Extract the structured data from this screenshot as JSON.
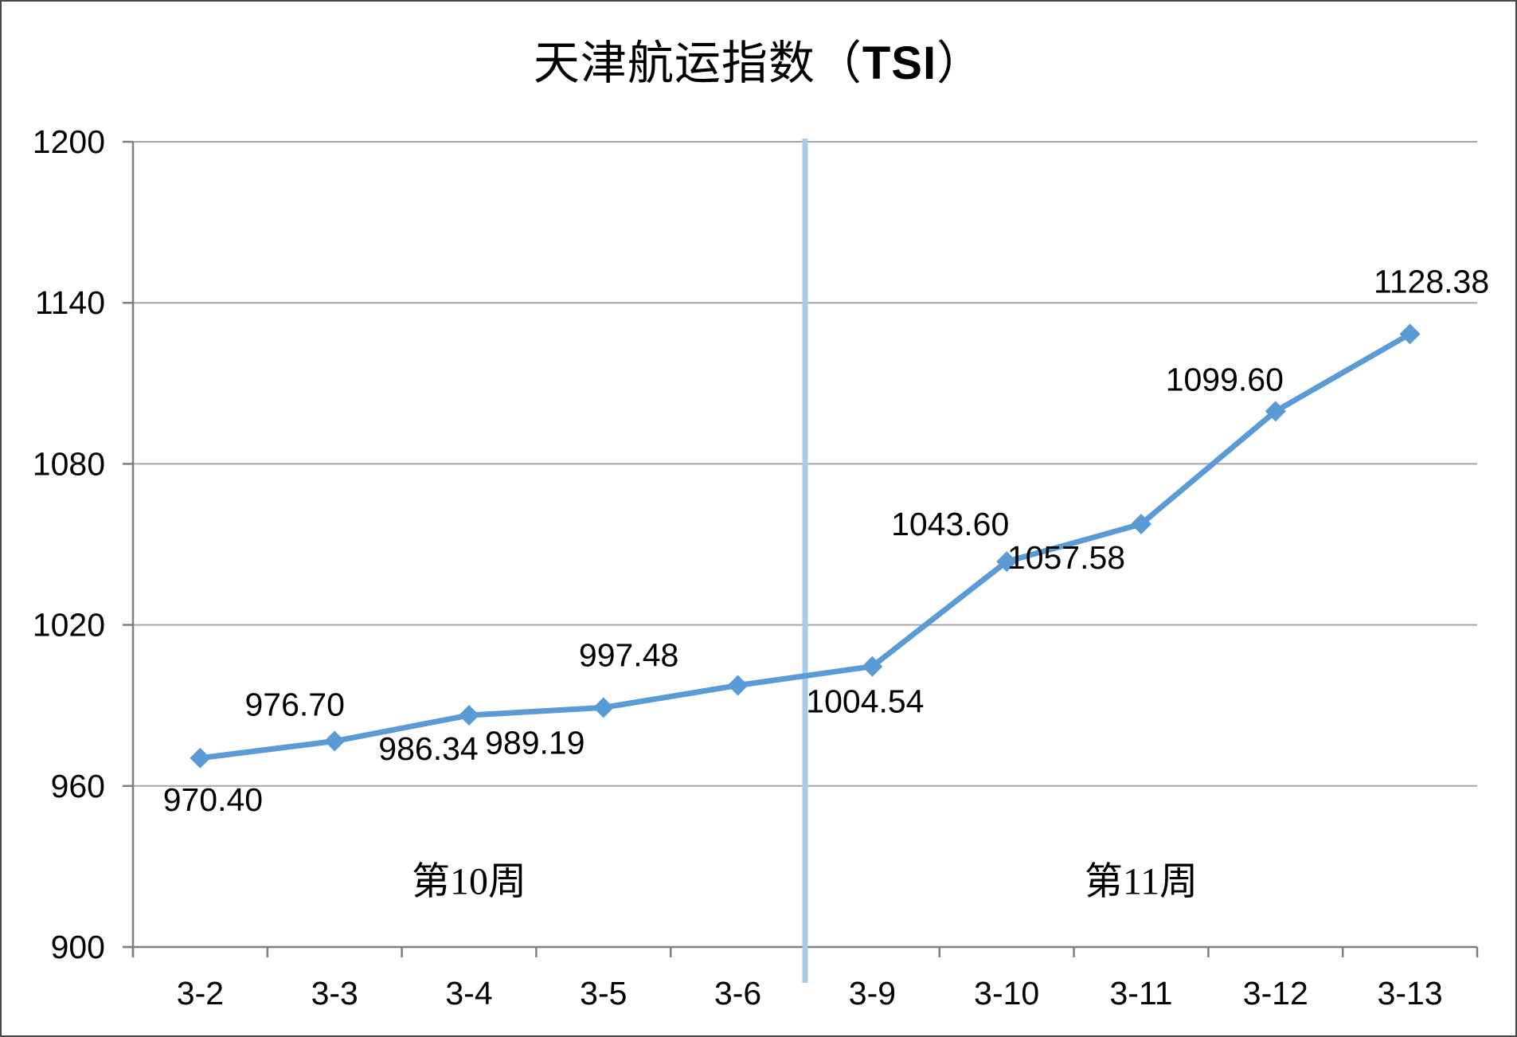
{
  "title": {
    "prefix": "天津航运指数（",
    "highlight": "TSI",
    "suffix": "）"
  },
  "chart_data": {
    "type": "line",
    "title": "天津航运指数（TSI）",
    "categories": [
      "3-2",
      "3-3",
      "3-4",
      "3-5",
      "3-6",
      "3-9",
      "3-10",
      "3-11",
      "3-12",
      "3-13"
    ],
    "series": [
      {
        "name": "TSI",
        "values": [
          970.4,
          976.7,
          986.34,
          989.19,
          997.48,
          1004.54,
          1043.6,
          1057.58,
          1099.6,
          1128.38
        ]
      }
    ],
    "data_labels": [
      "970.40",
      "976.70",
      "986.34",
      "989.19",
      "997.48",
      "1004.54",
      "1043.60",
      "1057.58",
      "1099.60",
      "1128.38"
    ],
    "xlabel": "",
    "ylabel": "",
    "ylim": [
      900,
      1200
    ],
    "ytick_step": 60,
    "ytick_labels": [
      "900",
      "960",
      "1020",
      "1080",
      "1140",
      "1200"
    ],
    "grid": true,
    "legend_position": "none",
    "marker": "diamond",
    "annotations": [
      {
        "text": "第10周",
        "region": "left-of-divider"
      },
      {
        "text": "第11周",
        "region": "right-of-divider"
      }
    ],
    "divider_after_category": "3-6",
    "colors": {
      "series": "#5B9BD5",
      "divider": "#A8CBE8",
      "gridline": "#A6A6A6",
      "axis": "#7F7F7F",
      "text": "#000000",
      "background": "#FFFFFF"
    }
  }
}
